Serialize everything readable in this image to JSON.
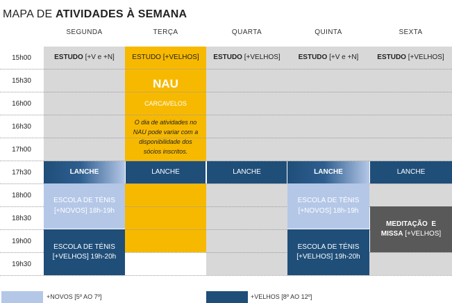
{
  "title": {
    "prefix": "MAPA DE ",
    "bold": "ATIVIDADES À SEMANA"
  },
  "days": [
    "SEGUNDA",
    "TERÇA",
    "QUARTA",
    "QUINTA",
    "SEXTA"
  ],
  "times": [
    "15h00",
    "15h30",
    "16h00",
    "16h30",
    "17h00",
    "17h30",
    "18h00",
    "18h30",
    "19h00",
    "19h30"
  ],
  "estudo": {
    "seg": {
      "bold": "ESTUDO",
      "rest": " [+V e +N]"
    },
    "ter": {
      "text": "ESTUDO [+VELHOS]"
    },
    "qua": {
      "bold": "ESTUDO",
      "rest": " [+VELHOS]"
    },
    "qui": {
      "bold": "ESTUDO",
      "rest": " [+V e +N]"
    },
    "sex": {
      "bold": "ESTUDO",
      "rest": " [+VELHOS]"
    }
  },
  "nau": {
    "title": "NAU",
    "place": "CARCAVELOS",
    "note": "O dia de atividades no NAU pode variar com a disponibilidade dos sócios inscritos."
  },
  "lanche": {
    "seg": "LANCHE",
    "ter": "LANCHE",
    "qua": "LANCHE",
    "qui": "LANCHE",
    "sex": "LANCHE"
  },
  "tenis_novos": {
    "line1": "ESCOLA DE TÉNIS",
    "line2": "[+NOVOS] 18h-19h"
  },
  "tenis_velhos": {
    "line1": "ESCOLA DE TÉNIS",
    "line2": "[+VELHOS] 19h-20h"
  },
  "meditacao": {
    "line1": "MEDITAÇÃO  E",
    "line2_bold": "MISSA",
    "line2_rest": " [+VELHOS]"
  },
  "legend": {
    "novos": "+NOVOS [5º AO 7º]",
    "velhos": "+VELHOS [8º AO 12º]"
  },
  "colors": {
    "gray": "#d8d8d8",
    "yellow": "#f7b900",
    "navy": "#1f4e79",
    "lightblue": "#b4c7e7",
    "darkgray": "#595959"
  }
}
